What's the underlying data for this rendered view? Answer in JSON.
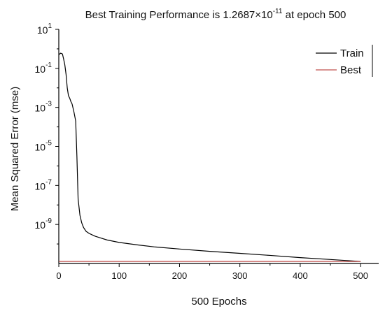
{
  "chart_data": {
    "type": "line",
    "title": {
      "prefix": "Best Training Performance is 1.2687×10",
      "exponent": "-11",
      "suffix": " at epoch 500"
    },
    "xlabel": "500 Epochs",
    "ylabel": "Mean Squared Error  (mse)",
    "xlim": [
      0,
      530
    ],
    "ylim": [
      1e-11,
      10
    ],
    "yscale": "log",
    "xticks": [
      0,
      100,
      200,
      300,
      400,
      500
    ],
    "xtick_labels": [
      "0",
      "100",
      "200",
      "300",
      "400",
      "500"
    ],
    "yticks": [
      10,
      0.1,
      0.001,
      1e-05,
      1e-07,
      1e-09
    ],
    "ytick_labels": [
      {
        "base": "10",
        "exp": "1"
      },
      {
        "base": "10",
        "exp": "-1"
      },
      {
        "base": "10",
        "exp": "-3"
      },
      {
        "base": "10",
        "exp": "-5"
      },
      {
        "base": "10",
        "exp": "-7"
      },
      {
        "base": "10",
        "exp": "-9"
      }
    ],
    "grid": false,
    "legend_position": "top-right",
    "series": [
      {
        "name": "Train",
        "color": "#000000",
        "x": [
          0,
          3,
          6,
          8,
          10,
          12,
          14,
          16,
          18,
          20,
          22,
          25,
          28,
          30,
          32,
          35,
          38,
          41,
          45,
          50,
          60,
          70,
          80,
          100,
          130,
          160,
          200,
          250,
          300,
          350,
          400,
          450,
          500
        ],
        "y": [
          0.5,
          0.6,
          0.55,
          0.3,
          0.15,
          0.05,
          0.01,
          0.004,
          0.003,
          0.002,
          0.0015,
          0.0006,
          0.0002,
          3e-06,
          2e-08,
          3e-09,
          1.2e-09,
          7e-10,
          4.5e-10,
          3.5e-10,
          2.5e-10,
          2e-10,
          1.6e-10,
          1.2e-10,
          9e-11,
          7e-11,
          5.5e-11,
          4.2e-11,
          3.3e-11,
          2.6e-11,
          2e-11,
          1.6e-11,
          1.27e-11
        ]
      },
      {
        "name": "Best",
        "color": "#c0504d",
        "x": [
          0,
          500
        ],
        "y": [
          1.2687e-11,
          1.2687e-11
        ]
      }
    ]
  }
}
